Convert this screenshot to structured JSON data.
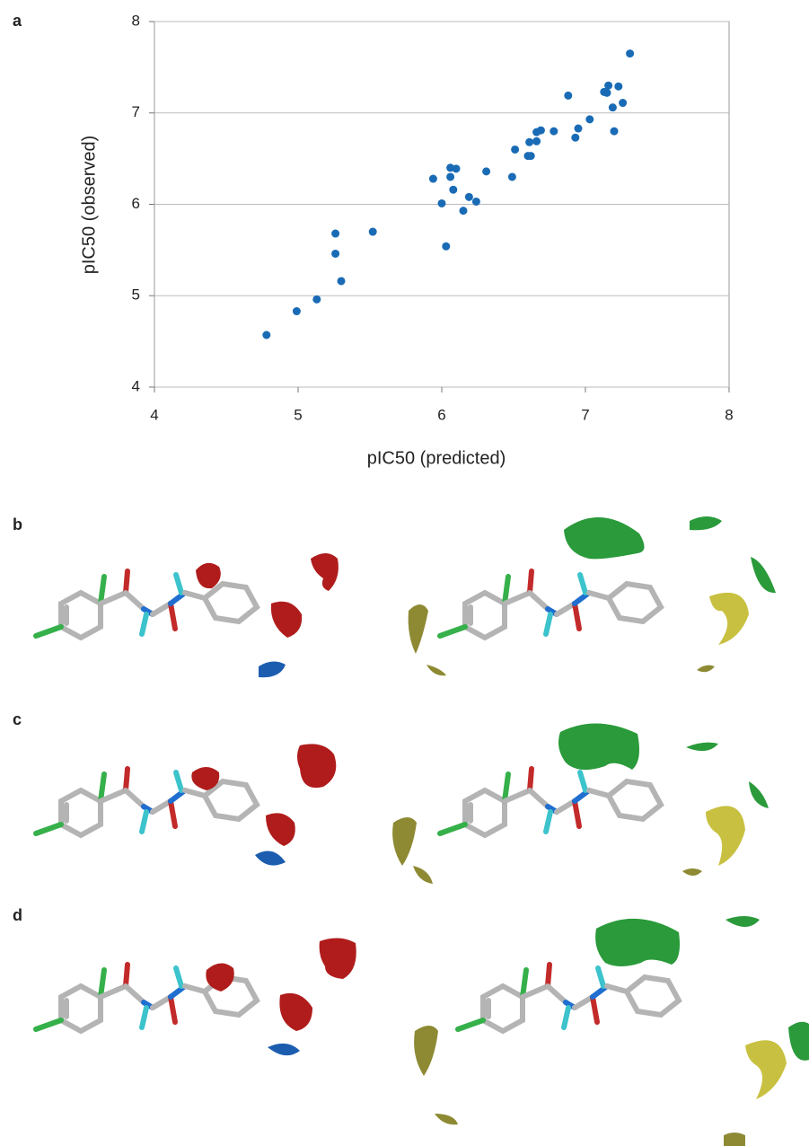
{
  "panel_labels": [
    "a",
    "b",
    "c",
    "d"
  ],
  "chart_data": {
    "type": "scatter",
    "x_label": "pIC50 (predicted)",
    "y_label": "pIC50 (observed)",
    "x": [
      4.78,
      4.99,
      5.13,
      5.3,
      5.26,
      5.26,
      5.52,
      6.03,
      5.94,
      6.0,
      6.06,
      6.06,
      6.1,
      6.08,
      6.15,
      6.19,
      6.24,
      6.31,
      6.49,
      6.51,
      6.61,
      6.6,
      6.62,
      6.66,
      6.66,
      6.69,
      6.78,
      6.88,
      6.93,
      6.95,
      7.03,
      7.13,
      7.16,
      7.15,
      7.23,
      7.19,
      7.2,
      7.26,
      7.31
    ],
    "values": [
      4.57,
      4.83,
      4.96,
      5.16,
      5.46,
      5.68,
      5.7,
      5.54,
      6.28,
      6.01,
      6.3,
      6.4,
      6.39,
      6.16,
      5.93,
      6.08,
      6.03,
      6.36,
      6.3,
      6.6,
      6.68,
      6.53,
      6.53,
      6.69,
      6.79,
      6.81,
      6.8,
      7.19,
      6.73,
      6.83,
      6.93,
      7.23,
      7.3,
      7.22,
      7.29,
      7.06,
      6.8,
      7.11,
      7.65
    ],
    "color": "#1a6bb5",
    "xlim": [
      4,
      8
    ],
    "ylim": [
      4,
      8
    ],
    "xticks": [
      4,
      5,
      6,
      7,
      8
    ],
    "yticks": [
      4,
      5,
      6,
      7,
      8
    ],
    "grid": true
  }
}
